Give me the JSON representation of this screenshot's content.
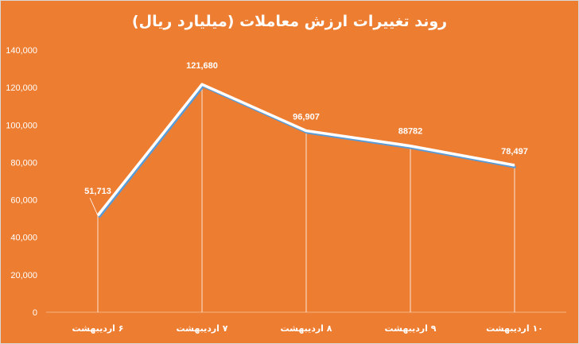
{
  "chart_data": {
    "type": "line",
    "title": "روند تغییرات ارزش معاملات (میلیارد ریال)",
    "categories": [
      "۶ اردیبهشت",
      "۷ اردیبهشت",
      "۸ اردیبهشت",
      "۹ اردیبهشت",
      "۱۰ اردیبهشت"
    ],
    "values": [
      51713,
      121680,
      96907,
      88782,
      78497
    ],
    "data_labels": [
      "51,713",
      "121,680",
      "96,907",
      "88782",
      "78,497"
    ],
    "y_ticks": [
      "0",
      "20,000",
      "40,000",
      "60,000",
      "80,000",
      "100,000",
      "120,000",
      "140,000"
    ],
    "ylim": [
      0,
      140000
    ],
    "grid": false,
    "drop_lines": true,
    "line_color": "#FFFFFF",
    "shadow_color": "#5B9BD5",
    "background": "#ED7D31"
  }
}
